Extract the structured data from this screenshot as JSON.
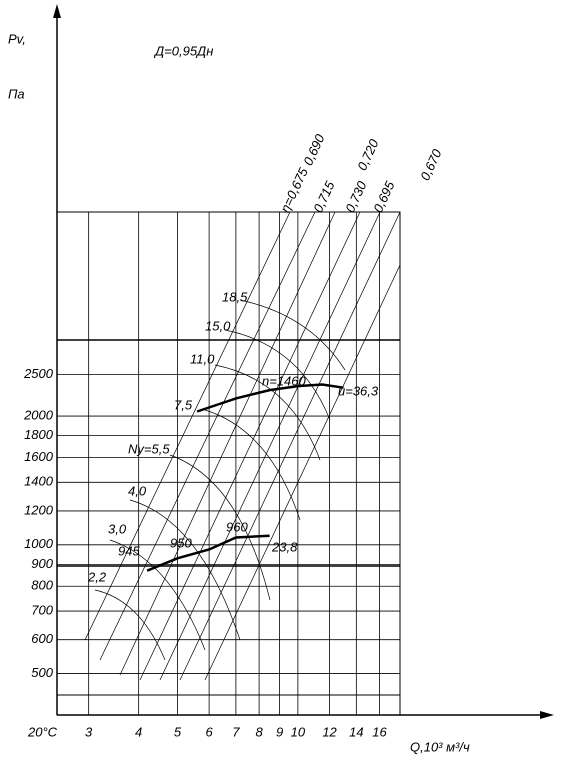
{
  "chart_data": {
    "type": "line",
    "title": "Д=0,95Дн",
    "ylabel_symbol": "Pv,",
    "ylabel_unit": "Па",
    "xlabel": "Q,10³ м³/ч",
    "temperature": "20°C",
    "xscale": "log",
    "yscale": "log",
    "grid": true,
    "xlim": [
      2.5,
      18
    ],
    "ylim": [
      400,
      6000
    ],
    "xticks": [
      3,
      4,
      5,
      6,
      7,
      8,
      9,
      10,
      12,
      14,
      16
    ],
    "yticks": [
      500,
      600,
      700,
      800,
      900,
      1000,
      1200,
      1400,
      1600,
      1800,
      2000,
      2500
    ],
    "series": [
      {
        "color": "#000000",
        "x": [
          5.6,
          7,
          8.5,
          10,
          11.5,
          13
        ],
        "values": [
          2050,
          2200,
          2300,
          2350,
          2370,
          2330
        ]
      },
      {
        "color": "#000000",
        "x": [
          4.2,
          5,
          6,
          7,
          8.5
        ],
        "values": [
          870,
          930,
          975,
          1040,
          1050
        ]
      }
    ],
    "efficiency_labels": [
      "η=0,675",
      "0,690",
      "0,715",
      "0,730",
      "0,720",
      "0,695",
      "0,670"
    ],
    "power_labels": [
      "2,2",
      "3,0",
      "4,0",
      "Ny=5,5",
      "7,5",
      "11,0",
      "15,0",
      "18,5"
    ],
    "speed_labels": [
      "n=1460",
      "945",
      "950",
      "960"
    ],
    "velocity_labels": [
      "u=36,3",
      "23,8"
    ]
  }
}
